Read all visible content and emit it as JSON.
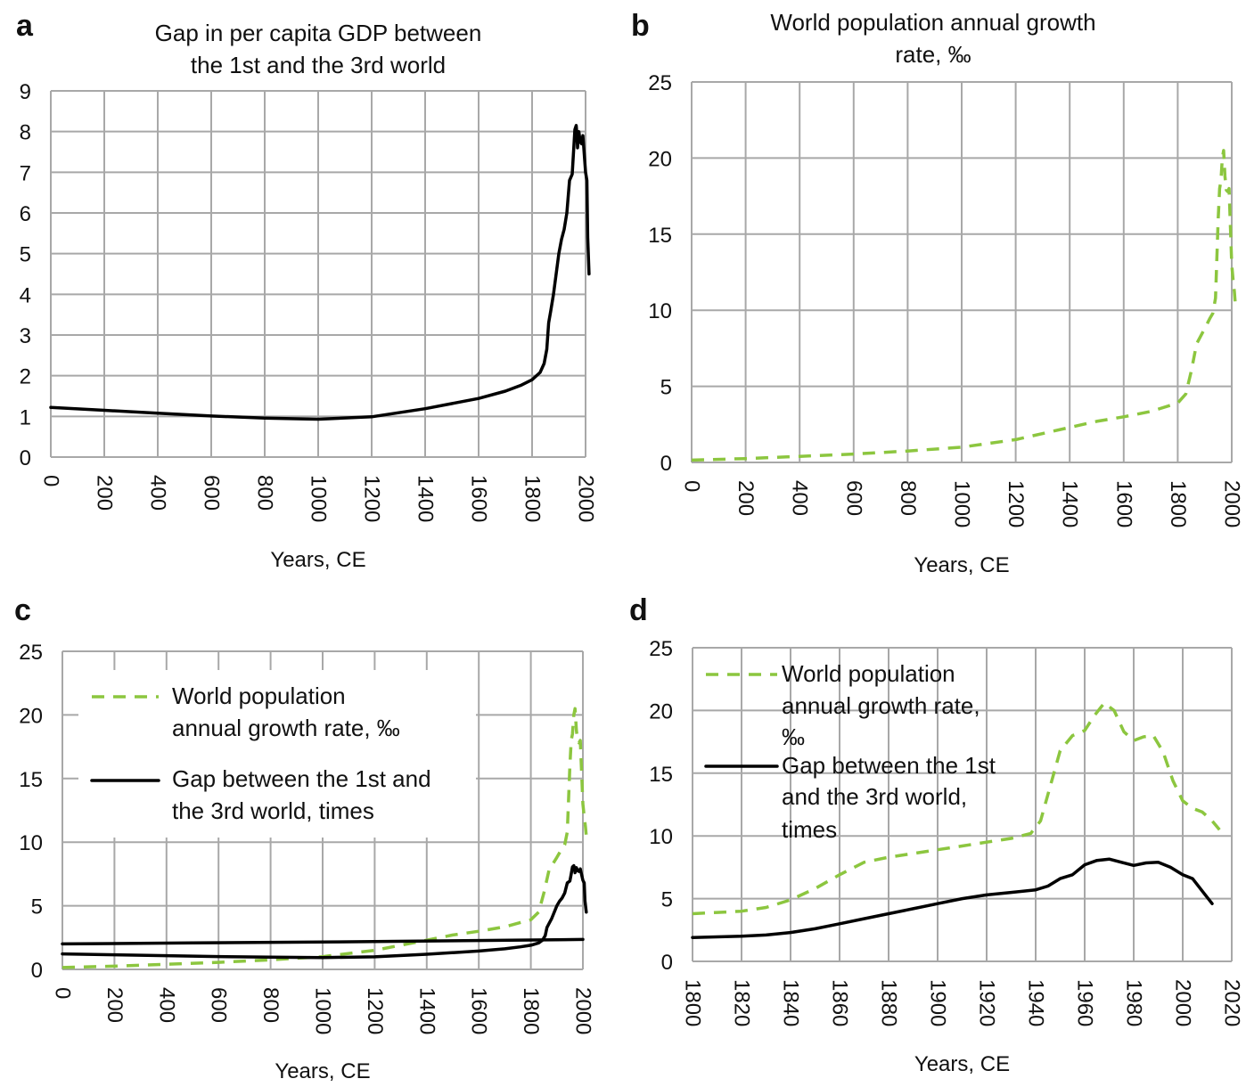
{
  "chart_data": [
    {
      "panel": "a",
      "type": "line",
      "title": [
        "Gap in per capita GDP between",
        "the 1st and the 3rd world"
      ],
      "xlabel": "Years, CE",
      "ylabel": "",
      "xlim": [
        0,
        2000
      ],
      "ylim": [
        0,
        9
      ],
      "xticks": [
        "0",
        "200",
        "400",
        "600",
        "800",
        "1000",
        "1200",
        "1400",
        "1600",
        "1800",
        "2000"
      ],
      "yticks": [
        "0",
        "1",
        "2",
        "3",
        "4",
        "5",
        "6",
        "7",
        "8",
        "9"
      ],
      "grid": true,
      "legend": null,
      "series": [
        {
          "style": "solid",
          "color": "#000000",
          "x": [
            0,
            200,
            400,
            600,
            800,
            1000,
            1200,
            1400,
            1600,
            1700,
            1760,
            1800,
            1830,
            1845,
            1855,
            1862,
            1870,
            1880,
            1900,
            1910,
            1920,
            1930,
            1940,
            1950,
            1955,
            1960,
            1965,
            1968,
            1970,
            1973,
            1975,
            1980,
            1985,
            1990,
            2000,
            2005,
            2008,
            2013
          ],
          "y": [
            1.22,
            1.15,
            1.08,
            1.01,
            0.96,
            0.93,
            0.99,
            1.19,
            1.44,
            1.62,
            1.77,
            1.9,
            2.08,
            2.3,
            2.65,
            3.3,
            3.6,
            4.0,
            5.0,
            5.35,
            5.6,
            6.0,
            6.8,
            6.95,
            7.5,
            8.05,
            8.15,
            7.9,
            7.6,
            7.85,
            8.0,
            7.75,
            7.7,
            7.9,
            7.0,
            6.8,
            5.4,
            4.5
          ]
        }
      ]
    },
    {
      "panel": "b",
      "type": "line",
      "title": [
        "World population annual growth",
        "rate, ‰"
      ],
      "xlabel": "Years, CE",
      "ylabel": "",
      "xlim": [
        0,
        2000
      ],
      "ylim": [
        0,
        25
      ],
      "xticks": [
        "0",
        "200",
        "400",
        "600",
        "800",
        "1000",
        "1200",
        "1400",
        "1600",
        "1800",
        "2000"
      ],
      "yticks": [
        "0",
        "5",
        "10",
        "15",
        "20",
        "25"
      ],
      "grid": true,
      "legend": null,
      "series": [
        {
          "style": "dashed",
          "color": "#8cc63f",
          "x": [
            0,
            200,
            400,
            600,
            800,
            1000,
            1200,
            1400,
            1500,
            1600,
            1700,
            1800,
            1830,
            1850,
            1870,
            1900,
            1920,
            1930,
            1940,
            1950,
            1955,
            1960,
            1965,
            1970,
            1975,
            1980,
            1985,
            1990,
            2000,
            2005,
            2010,
            2013
          ],
          "y": [
            0.15,
            0.25,
            0.4,
            0.55,
            0.75,
            1.0,
            1.5,
            2.3,
            2.7,
            3.0,
            3.35,
            3.9,
            4.5,
            6.0,
            7.8,
            8.8,
            9.5,
            9.8,
            10.8,
            16.0,
            18.0,
            18.5,
            20.0,
            20.5,
            18.8,
            17.9,
            17.8,
            18.0,
            13.0,
            12.0,
            11.2,
            10.5
          ]
        }
      ]
    },
    {
      "panel": "c",
      "type": "line",
      "title": "",
      "xlabel": "Years, CE",
      "ylabel": "",
      "xlim": [
        0,
        2000
      ],
      "ylim": [
        0,
        25
      ],
      "xticks": [
        "0",
        "200",
        "400",
        "600",
        "800",
        "1000",
        "1200",
        "1400",
        "1600",
        "1800",
        "2000"
      ],
      "yticks": [
        "0",
        "5",
        "10",
        "15",
        "20",
        "25"
      ],
      "grid": true,
      "legend_position": "top-left",
      "legend": [
        {
          "style": "dashed",
          "color": "#8cc63f",
          "lines": [
            "World population",
            "annual growth rate, ‰"
          ]
        },
        {
          "style": "solid",
          "color": "#000000",
          "lines": [
            "Gap between the 1st and",
            "the 3rd world, times"
          ]
        }
      ],
      "series": [
        {
          "style": "dashed",
          "color": "#8cc63f",
          "x": [
            0,
            200,
            400,
            600,
            800,
            1000,
            1200,
            1400,
            1500,
            1600,
            1700,
            1800,
            1830,
            1850,
            1870,
            1900,
            1920,
            1930,
            1940,
            1950,
            1955,
            1960,
            1965,
            1970,
            1975,
            1980,
            1985,
            1990,
            2000,
            2005,
            2010,
            2013
          ],
          "y": [
            0.15,
            0.25,
            0.4,
            0.55,
            0.75,
            1.0,
            1.5,
            2.3,
            2.7,
            3.0,
            3.35,
            3.9,
            4.5,
            6.0,
            7.8,
            8.8,
            9.5,
            9.8,
            10.8,
            16.0,
            18.0,
            18.5,
            20.0,
            20.5,
            18.8,
            17.9,
            17.8,
            18.0,
            13.0,
            12.0,
            11.2,
            10.5
          ]
        },
        {
          "style": "solid",
          "color": "#000000",
          "x": [
            0,
            200,
            400,
            600,
            800,
            1000,
            1200,
            1400,
            1600,
            1700,
            1760,
            1800,
            1830,
            1845,
            1855,
            1862,
            1870,
            1880,
            1900,
            1910,
            1920,
            1930,
            1940,
            1950,
            1955,
            1960,
            1965,
            1968,
            1970,
            1973,
            1975,
            1980,
            1985,
            1990,
            2000,
            2005,
            2008,
            2013
          ],
          "y": [
            1.22,
            1.15,
            1.08,
            1.01,
            0.96,
            0.93,
            0.99,
            1.19,
            1.44,
            1.62,
            1.77,
            1.9,
            2.08,
            2.3,
            2.65,
            3.3,
            3.6,
            4.0,
            5.0,
            5.35,
            5.6,
            6.0,
            6.8,
            6.95,
            7.5,
            8.05,
            8.15,
            7.9,
            7.6,
            7.85,
            8.0,
            7.75,
            7.7,
            7.9,
            7.0,
            6.8,
            5.4,
            4.5
          ]
        },
        {
          "style": "solid",
          "color": "#000000",
          "x": [
            0,
            500,
            1000,
            1500,
            2000
          ],
          "y": [
            2.0,
            2.08,
            2.15,
            2.25,
            2.35
          ]
        }
      ]
    },
    {
      "panel": "d",
      "type": "line",
      "title": "",
      "xlabel": "Years, CE",
      "ylabel": "",
      "xlim": [
        1800,
        2020
      ],
      "ylim": [
        0,
        25
      ],
      "xticks": [
        "1800",
        "1820",
        "1840",
        "1860",
        "1880",
        "1900",
        "1920",
        "1940",
        "1960",
        "1980",
        "2000",
        "2020"
      ],
      "yticks": [
        "0",
        "5",
        "10",
        "15",
        "20",
        "25"
      ],
      "grid": true,
      "legend_position": "top-left",
      "legend": [
        {
          "style": "dashed",
          "color": "#8cc63f",
          "lines": [
            "World population",
            "annual growth rate,",
            "‰"
          ]
        },
        {
          "style": "solid",
          "color": "#000000",
          "lines": [
            "Gap between the 1st",
            "and the 3rd world,",
            "times"
          ]
        }
      ],
      "series": [
        {
          "style": "dashed",
          "color": "#8cc63f",
          "x": [
            1800,
            1810,
            1820,
            1830,
            1840,
            1850,
            1860,
            1870,
            1880,
            1890,
            1900,
            1910,
            1920,
            1930,
            1938,
            1942,
            1946,
            1950,
            1955,
            1960,
            1964,
            1968,
            1972,
            1976,
            1980,
            1984,
            1988,
            1992,
            1996,
            2000,
            2004,
            2008,
            2012,
            2015
          ],
          "y": [
            3.8,
            3.9,
            4.0,
            4.3,
            4.9,
            5.8,
            6.9,
            7.9,
            8.3,
            8.6,
            8.9,
            9.2,
            9.5,
            9.8,
            10.2,
            11.2,
            14.0,
            16.8,
            18.0,
            18.4,
            19.6,
            20.6,
            20.0,
            18.3,
            17.6,
            17.9,
            18.0,
            16.7,
            14.4,
            12.8,
            12.2,
            11.9,
            11.2,
            10.5
          ]
        },
        {
          "style": "solid",
          "color": "#000000",
          "x": [
            1800,
            1810,
            1820,
            1830,
            1840,
            1850,
            1860,
            1870,
            1880,
            1890,
            1900,
            1910,
            1920,
            1930,
            1940,
            1945,
            1950,
            1955,
            1960,
            1965,
            1970,
            1975,
            1980,
            1985,
            1990,
            1995,
            2000,
            2004,
            2008,
            2012
          ],
          "y": [
            1.9,
            1.95,
            2.0,
            2.1,
            2.3,
            2.6,
            3.0,
            3.4,
            3.8,
            4.2,
            4.6,
            5.0,
            5.3,
            5.5,
            5.7,
            6.0,
            6.6,
            6.9,
            7.7,
            8.05,
            8.15,
            7.9,
            7.65,
            7.85,
            7.9,
            7.5,
            6.9,
            6.6,
            5.6,
            4.6
          ]
        }
      ]
    }
  ]
}
